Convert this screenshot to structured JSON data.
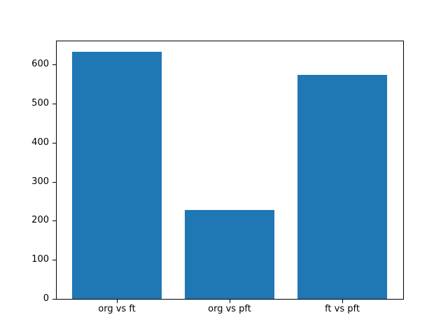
{
  "figure": {
    "background_color": "#ffffff",
    "spine_color": "#000000",
    "tick_color": "#000000"
  },
  "chart_data": {
    "type": "bar",
    "categories": [
      "org vs ft",
      "org vs pft",
      "ft vs pft"
    ],
    "values": [
      632,
      228,
      573
    ],
    "title": "",
    "xlabel": "",
    "ylabel": "",
    "ylim": [
      0,
      661
    ],
    "yticks": [
      0,
      100,
      200,
      300,
      400,
      500,
      600
    ],
    "xlim": [
      -0.54,
      2.54
    ],
    "bar_width": 0.8,
    "bar_color": "#1f77b4",
    "grid": false,
    "legend": null
  }
}
